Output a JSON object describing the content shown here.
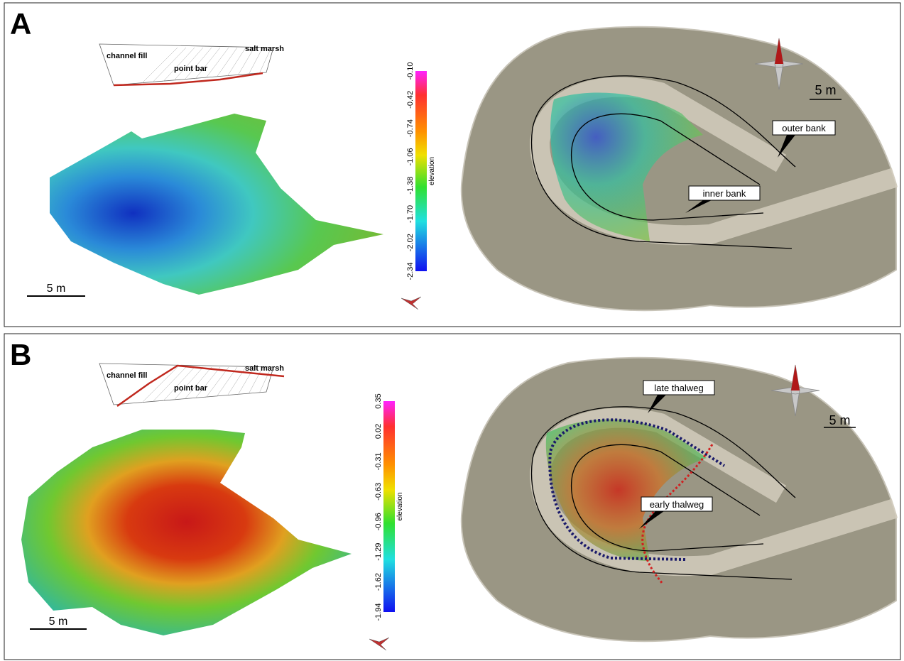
{
  "panels": [
    {
      "label": "A",
      "profile": {
        "channel_fill": "channel fill",
        "point_bar": "point bar",
        "salt_marsh": "salt marsh"
      },
      "left_scale": "5 m",
      "colorbar": {
        "title": "elevation",
        "ticks": [
          "-0.10",
          "-0.42",
          "-0.74",
          "-1.06",
          "-1.38",
          "-1.70",
          "-2.02",
          "-2.34"
        ]
      },
      "map": {
        "scale": "5 m",
        "callouts": [
          "outer bank",
          "inner bank"
        ]
      }
    },
    {
      "label": "B",
      "profile": {
        "channel_fill": "channel fill",
        "point_bar": "point bar",
        "salt_marsh": "salt marsh"
      },
      "left_scale": "5 m",
      "colorbar": {
        "title": "elevation",
        "ticks": [
          "0.35",
          "0.02",
          "-0.31",
          "-0.63",
          "-0.96",
          "-1.29",
          "-1.62",
          "-1.94"
        ]
      },
      "map": {
        "scale": "5 m",
        "callouts": [
          "late thalweg",
          "early thalweg"
        ]
      }
    }
  ]
}
